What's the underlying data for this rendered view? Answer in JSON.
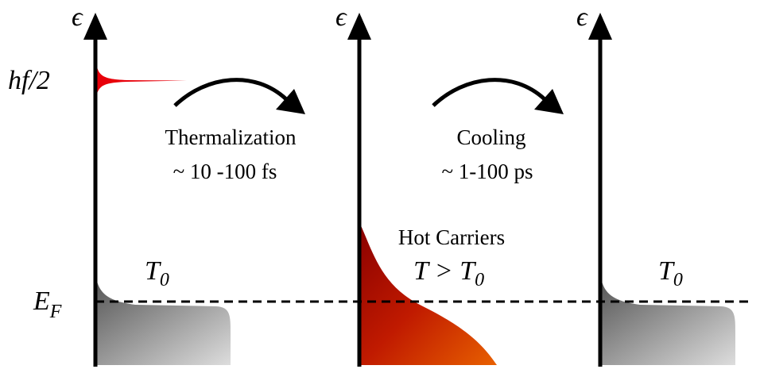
{
  "axes": [
    {
      "label": "ϵ"
    },
    {
      "label": "ϵ"
    },
    {
      "label": "ϵ"
    }
  ],
  "energy_labels": {
    "photon": "hf/2",
    "fermi": {
      "base": "E",
      "sub": "F"
    }
  },
  "stages": [
    {
      "title": "Thermalization",
      "time": "~ 10 -100 fs"
    },
    {
      "title": "Cooling",
      "time": "~ 1-100 ps"
    }
  ],
  "distributions": [
    {
      "label": {
        "base": "T",
        "sub": "0"
      }
    },
    {
      "caption": "Hot Carriers",
      "label": {
        "base": "T > T",
        "sub": "0"
      }
    },
    {
      "label": {
        "base": "T",
        "sub": "0"
      }
    }
  ]
}
